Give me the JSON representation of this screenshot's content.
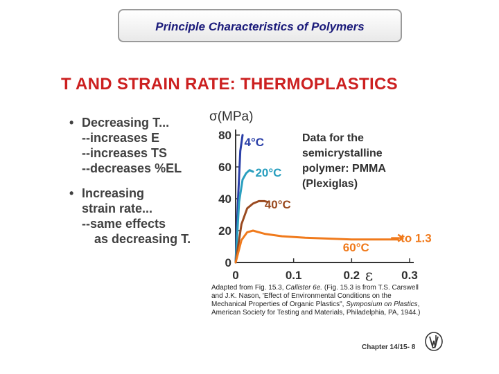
{
  "header": {
    "title": "Principle Characteristics of Polymers"
  },
  "section_title": "T AND STRAIN RATE:  THERMOPLASTICS",
  "bullets": {
    "b1_prefix": "Decreasing ",
    "b1_var": "T",
    "b1_suffix": "...",
    "b1_items": [
      "--increases E",
      "--increases TS",
      "--decreases %EL"
    ],
    "b2_line1": "Increasing",
    "b2_line2": "strain rate...",
    "b2_line3": "--same effects",
    "b2_line4_prefix": "as decreasing ",
    "b2_line4_var": "T",
    "b2_line4_suffix": "."
  },
  "chart_data": {
    "type": "line",
    "title": "",
    "xlabel": "ε",
    "ylabel": "σ(MPa)",
    "xlim": [
      0,
      0.3
    ],
    "ylim": [
      0,
      80
    ],
    "xticks": [
      0,
      0.1,
      0.2,
      0.3
    ],
    "xtick_labels": [
      "0",
      "0.1",
      "0.2",
      "0.3"
    ],
    "yticks": [
      0,
      20,
      40,
      60,
      80
    ],
    "ytick_labels": [
      "0",
      "20",
      "40",
      "60",
      "80"
    ],
    "grid": false,
    "series": [
      {
        "name": "4°C",
        "color": "#2a3fa8",
        "x": [
          0,
          0.004,
          0.008,
          0.012
        ],
        "y": [
          0,
          38,
          70,
          80
        ]
      },
      {
        "name": "20°C",
        "color": "#2a9fbf",
        "x": [
          0,
          0.006,
          0.012,
          0.018,
          0.024,
          0.03
        ],
        "y": [
          0,
          38,
          52,
          56,
          58,
          57
        ]
      },
      {
        "name": "40°C",
        "color": "#9a4a20",
        "x": [
          0,
          0.01,
          0.02,
          0.03,
          0.04,
          0.05,
          0.055
        ],
        "y": [
          0,
          24,
          34,
          37,
          38.5,
          38.5,
          38
        ]
      },
      {
        "name": "60°C",
        "color": "#f07a1c",
        "x": [
          0,
          0.01,
          0.02,
          0.03,
          0.05,
          0.08,
          0.12,
          0.16,
          0.2,
          0.24,
          0.28
        ],
        "y": [
          0,
          14,
          19,
          20,
          18,
          16.5,
          15.5,
          15,
          14.5,
          14.5,
          14.5
        ]
      }
    ],
    "annotations": {
      "data_note": [
        "Data for the",
        "semicrystalline",
        "polymer: PMMA",
        "(Plexiglas)"
      ],
      "arrow_label": "to 1.3"
    }
  },
  "credit": {
    "line1_a": "Adapted from Fig. 15.3, ",
    "line1_b": "Callister 6e.",
    "line1_c": "  (Fig. 15.3 is from T.S. Carswell",
    "line2": "and J.K. Nason, 'Effect of Environmental Conditions on the",
    "line3_a": "Mechanical Properties of Organic Plastics\", ",
    "line3_b": "Symposium on Plastics",
    "line3_c": ",",
    "line4": "American Society for Testing and Materials, Philadelphia, PA, 1944.)"
  },
  "footer": {
    "chapter": "Chapter 14/15- 8"
  }
}
